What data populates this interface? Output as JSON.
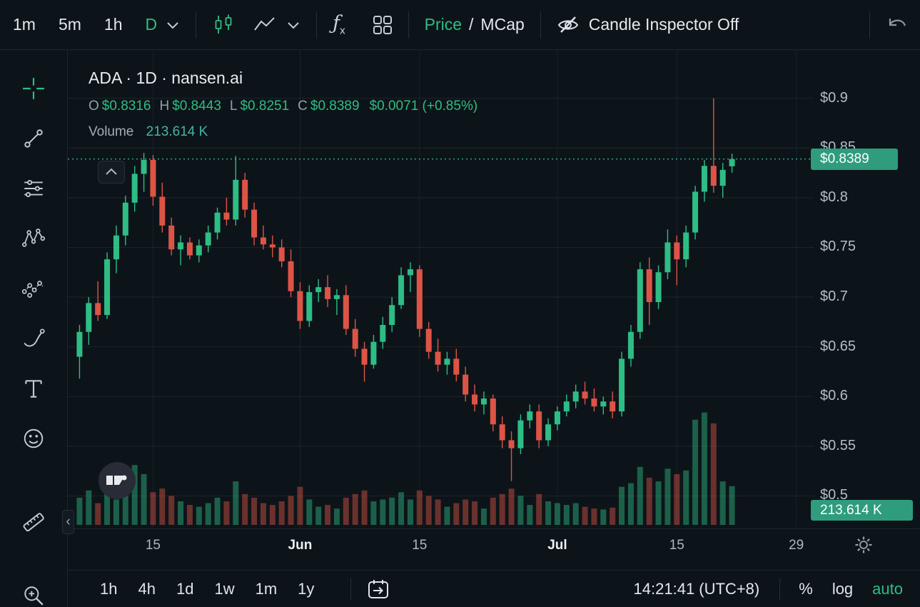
{
  "colors": {
    "accent_green": "#2ebd85",
    "candle_up": "#2ebd85",
    "candle_down": "#dd5446",
    "badge_bg": "#2e9c7d",
    "volume_value": "#45b3a7"
  },
  "top_toolbar": {
    "timeframes": [
      "1m",
      "5m",
      "1h"
    ],
    "active_timeframe": "D",
    "icons": [
      "chevron-down-icon",
      "candles-icon",
      "line-chart-icon",
      "chevron-down-icon",
      "indicators-fx-icon",
      "layout-grid-icon",
      "eye-off-icon",
      "undo-icon"
    ],
    "indicators_f": "ƒ",
    "indicators_x": "x",
    "price_label": "Price",
    "separator": "/",
    "mcap_label": "MCap",
    "candle_inspector_label": "Candle Inspector Off"
  },
  "left_toolbar": {
    "tools": [
      "crosshair",
      "trend-line",
      "horizontal-lines",
      "xabcd-pattern",
      "forecast-pattern",
      "brush",
      "text",
      "emoji",
      "ruler",
      "zoom-in"
    ],
    "active_tool": "crosshair",
    "collapse_glyph": "‹"
  },
  "legend": {
    "symbol_line": "ADA · 1D · nansen.ai",
    "ohlc": [
      {
        "k": "O",
        "v": "$0.8316"
      },
      {
        "k": "H",
        "v": "$0.8443"
      },
      {
        "k": "L",
        "v": "$0.8251"
      },
      {
        "k": "C",
        "v": "$0.8389"
      }
    ],
    "change": "$0.0071 (+0.85%)",
    "volume_label": "Volume",
    "volume_value": "213.614 K"
  },
  "price_axis": {
    "ticks": [
      {
        "label": "$0.9",
        "price": 0.9
      },
      {
        "label": "$0.85",
        "price": 0.85
      },
      {
        "label": "$0.8",
        "price": 0.8
      },
      {
        "label": "$0.75",
        "price": 0.75
      },
      {
        "label": "$0.7",
        "price": 0.7
      },
      {
        "label": "$0.65",
        "price": 0.65
      },
      {
        "label": "$0.6",
        "price": 0.6
      },
      {
        "label": "$0.55",
        "price": 0.55
      },
      {
        "label": "$0.5",
        "price": 0.5
      }
    ],
    "last_price_label": "$0.8389",
    "last_volume_label": "213.614 K"
  },
  "time_axis": {
    "ticks": [
      {
        "label": "15",
        "slot": 8,
        "emph": false
      },
      {
        "label": "Jun",
        "slot": 24,
        "emph": true
      },
      {
        "label": "15",
        "slot": 37,
        "emph": false
      },
      {
        "label": "Jul",
        "slot": 52,
        "emph": true
      },
      {
        "label": "15",
        "slot": 65,
        "emph": false
      },
      {
        "label": "29",
        "slot": 78,
        "emph": false
      }
    ]
  },
  "bottom_toolbar": {
    "ranges": [
      "1h",
      "4h",
      "1d",
      "1w",
      "1m",
      "1y"
    ],
    "go_to_date_icon": "calendar-go-to-icon",
    "clock": "14:21:41 (UTC+8)",
    "scale_percent": "%",
    "scale_log": "log",
    "scale_auto": "auto"
  },
  "chart_data": {
    "type": "candlestick",
    "title": "ADA · 1D · nansen.ai",
    "symbol": "ADA",
    "interval": "1D",
    "source": "nansen.ai",
    "price_range": [
      0.468,
      0.945
    ],
    "total_slots": 80,
    "vol_max_k": 650,
    "grid": true,
    "colors": {
      "up": "#2ebd85",
      "down": "#dd5446",
      "last_price_line": "#3ecf9f"
    },
    "candle_fields": [
      "open",
      "high",
      "low",
      "close",
      "volume_k"
    ],
    "candles": [
      [
        0.64,
        0.672,
        0.618,
        0.665,
        150
      ],
      [
        0.665,
        0.7,
        0.652,
        0.694,
        190
      ],
      [
        0.694,
        0.716,
        0.676,
        0.682,
        120
      ],
      [
        0.682,
        0.745,
        0.678,
        0.738,
        170
      ],
      [
        0.738,
        0.772,
        0.724,
        0.762,
        140
      ],
      [
        0.762,
        0.802,
        0.752,
        0.795,
        160
      ],
      [
        0.795,
        0.832,
        0.786,
        0.824,
        330
      ],
      [
        0.824,
        0.845,
        0.806,
        0.838,
        280
      ],
      [
        0.838,
        0.843,
        0.792,
        0.801,
        180
      ],
      [
        0.801,
        0.815,
        0.765,
        0.772,
        200
      ],
      [
        0.772,
        0.78,
        0.742,
        0.748,
        160
      ],
      [
        0.748,
        0.762,
        0.732,
        0.755,
        130
      ],
      [
        0.755,
        0.76,
        0.738,
        0.742,
        110
      ],
      [
        0.742,
        0.758,
        0.735,
        0.752,
        100
      ],
      [
        0.752,
        0.772,
        0.745,
        0.765,
        120
      ],
      [
        0.765,
        0.79,
        0.758,
        0.785,
        150
      ],
      [
        0.785,
        0.8,
        0.772,
        0.778,
        130
      ],
      [
        0.778,
        0.842,
        0.772,
        0.818,
        240
      ],
      [
        0.818,
        0.825,
        0.78,
        0.788,
        170
      ],
      [
        0.788,
        0.795,
        0.752,
        0.76,
        150
      ],
      [
        0.76,
        0.772,
        0.748,
        0.753,
        120
      ],
      [
        0.753,
        0.762,
        0.74,
        0.75,
        110
      ],
      [
        0.75,
        0.758,
        0.73,
        0.736,
        130
      ],
      [
        0.736,
        0.748,
        0.7,
        0.706,
        160
      ],
      [
        0.706,
        0.715,
        0.668,
        0.676,
        210
      ],
      [
        0.676,
        0.712,
        0.67,
        0.705,
        140
      ],
      [
        0.705,
        0.718,
        0.695,
        0.71,
        100
      ],
      [
        0.71,
        0.722,
        0.69,
        0.698,
        110
      ],
      [
        0.698,
        0.708,
        0.682,
        0.702,
        90
      ],
      [
        0.702,
        0.712,
        0.662,
        0.668,
        150
      ],
      [
        0.668,
        0.678,
        0.64,
        0.648,
        170
      ],
      [
        0.648,
        0.655,
        0.615,
        0.632,
        190
      ],
      [
        0.632,
        0.662,
        0.628,
        0.655,
        130
      ],
      [
        0.655,
        0.68,
        0.648,
        0.672,
        140
      ],
      [
        0.672,
        0.7,
        0.665,
        0.692,
        150
      ],
      [
        0.692,
        0.73,
        0.688,
        0.722,
        180
      ],
      [
        0.722,
        0.735,
        0.705,
        0.728,
        140
      ],
      [
        0.728,
        0.732,
        0.66,
        0.668,
        190
      ],
      [
        0.668,
        0.675,
        0.638,
        0.645,
        160
      ],
      [
        0.645,
        0.658,
        0.625,
        0.632,
        140
      ],
      [
        0.632,
        0.645,
        0.622,
        0.638,
        100
      ],
      [
        0.638,
        0.648,
        0.615,
        0.622,
        120
      ],
      [
        0.622,
        0.63,
        0.595,
        0.602,
        140
      ],
      [
        0.602,
        0.612,
        0.585,
        0.592,
        130
      ],
      [
        0.592,
        0.605,
        0.582,
        0.598,
        90
      ],
      [
        0.598,
        0.602,
        0.565,
        0.572,
        150
      ],
      [
        0.572,
        0.58,
        0.548,
        0.556,
        170
      ],
      [
        0.556,
        0.565,
        0.515,
        0.548,
        200
      ],
      [
        0.548,
        0.582,
        0.542,
        0.576,
        160
      ],
      [
        0.576,
        0.592,
        0.568,
        0.585,
        110
      ],
      [
        0.585,
        0.592,
        0.548,
        0.556,
        170
      ],
      [
        0.556,
        0.578,
        0.55,
        0.572,
        130
      ],
      [
        0.572,
        0.59,
        0.566,
        0.585,
        120
      ],
      [
        0.585,
        0.602,
        0.58,
        0.595,
        110
      ],
      [
        0.595,
        0.612,
        0.588,
        0.605,
        120
      ],
      [
        0.605,
        0.615,
        0.592,
        0.598,
        100
      ],
      [
        0.598,
        0.608,
        0.585,
        0.59,
        90
      ],
      [
        0.59,
        0.6,
        0.582,
        0.595,
        85
      ],
      [
        0.595,
        0.605,
        0.578,
        0.585,
        95
      ],
      [
        0.585,
        0.645,
        0.58,
        0.638,
        210
      ],
      [
        0.638,
        0.672,
        0.63,
        0.665,
        230
      ],
      [
        0.665,
        0.735,
        0.658,
        0.728,
        320
      ],
      [
        0.728,
        0.74,
        0.672,
        0.695,
        260
      ],
      [
        0.695,
        0.732,
        0.688,
        0.725,
        240
      ],
      [
        0.725,
        0.768,
        0.718,
        0.755,
        310
      ],
      [
        0.755,
        0.762,
        0.712,
        0.738,
        280
      ],
      [
        0.738,
        0.772,
        0.73,
        0.765,
        300
      ],
      [
        0.765,
        0.812,
        0.758,
        0.806,
        580
      ],
      [
        0.806,
        0.838,
        0.796,
        0.832,
        620
      ],
      [
        0.832,
        0.9,
        0.805,
        0.812,
        560
      ],
      [
        0.812,
        0.835,
        0.8,
        0.828,
        240
      ],
      [
        0.8316,
        0.8443,
        0.8251,
        0.8389,
        213.614
      ]
    ],
    "last": {
      "open": 0.8316,
      "high": 0.8443,
      "low": 0.8251,
      "close": 0.8389,
      "change_abs": 0.0071,
      "change_pct": "+0.85%",
      "volume_k": 213.614
    }
  }
}
